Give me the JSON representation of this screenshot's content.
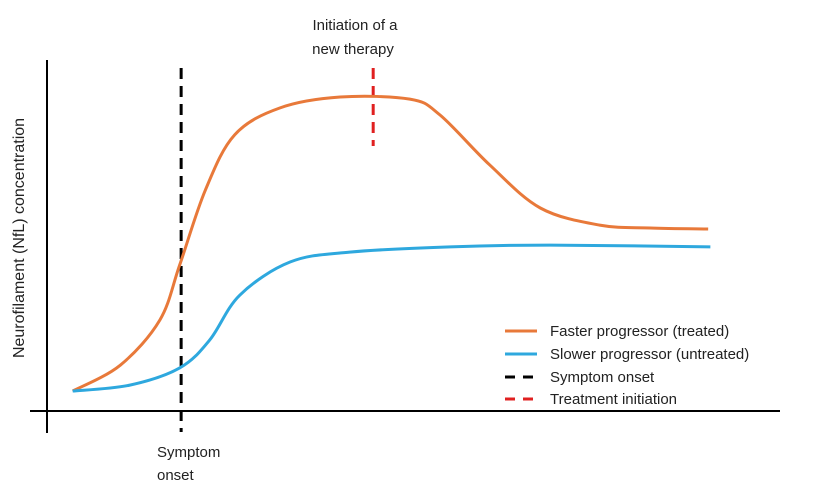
{
  "chart_data": {
    "type": "line",
    "title": "",
    "xlabel": "",
    "ylabel": "Neurofilament (NfL) concentration",
    "xlim": [
      0,
      100
    ],
    "ylim": [
      0,
      100
    ],
    "grid": false,
    "legend_position": "bottom-right",
    "series": [
      {
        "name": "Faster progressor (treated)",
        "color": "#E8793A",
        "style": "solid",
        "x": [
          3.5,
          10,
          15.4,
          18.1,
          21.6,
          25.6,
          31.8,
          40,
          49.5,
          53.6,
          60.4,
          67.3,
          75.4,
          82.3,
          90.2
        ],
        "y": [
          5.7,
          13.1,
          26,
          41.7,
          63.1,
          78.9,
          86.6,
          89.7,
          89.1,
          84.6,
          70.3,
          58,
          53.1,
          52.3,
          52
        ]
      },
      {
        "name": "Slower progressor (untreated)",
        "color": "#2EA8DE",
        "style": "solid",
        "x": [
          3.5,
          11.3,
          18.1,
          22.2,
          26.3,
          33.2,
          41.3,
          55,
          68.6,
          90.5
        ],
        "y": [
          5.7,
          7.4,
          12.3,
          20.3,
          33.1,
          42.6,
          45.4,
          46.9,
          47.4,
          46.9
        ]
      }
    ],
    "vlines": [
      {
        "name": "Symptom onset",
        "x": 18.3,
        "color": "#000000",
        "style": "dashed",
        "label": [
          "Symptom",
          "onset"
        ]
      },
      {
        "name": "Treatment initiation",
        "x": 44.5,
        "color": "#E02020",
        "style": "dashed",
        "label": [
          "Initiation of a",
          "new therapy"
        ]
      }
    ]
  }
}
